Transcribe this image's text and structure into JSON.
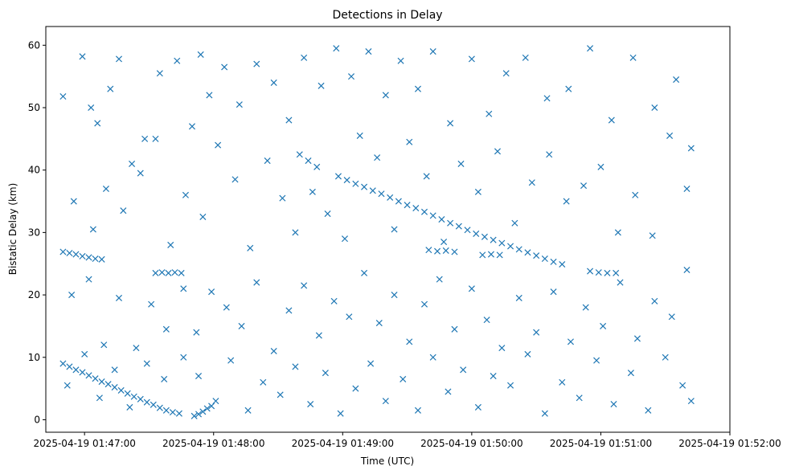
{
  "chart_data": {
    "type": "scatter",
    "title": "Detections in Delay",
    "xlabel": "Time (UTC)",
    "ylabel": "Bistatic Delay (km)",
    "xlim": [
      "2025-04-19 01:46:42",
      "2025-04-19 01:52:00"
    ],
    "ylim": [
      -2,
      63
    ],
    "x_ticks": [
      "2025-04-19 01:47:00",
      "2025-04-19 01:48:00",
      "2025-04-19 01:49:00",
      "2025-04-19 01:50:00",
      "2025-04-19 01:51:00",
      "2025-04-19 01:52:00"
    ],
    "y_ticks": [
      "0",
      "10",
      "20",
      "30",
      "40",
      "50",
      "60"
    ],
    "marker": "x",
    "color": "#1f77b4",
    "grid": false,
    "series": [
      {
        "points": [
          [
            "2025-04-19 01:46:50",
            9.0
          ],
          [
            "2025-04-19 01:46:53",
            8.5
          ],
          [
            "2025-04-19 01:46:56",
            8.0
          ],
          [
            "2025-04-19 01:46:59",
            7.6
          ],
          [
            "2025-04-19 01:47:02",
            7.1
          ],
          [
            "2025-04-19 01:47:05",
            6.6
          ],
          [
            "2025-04-19 01:47:08",
            6.1
          ],
          [
            "2025-04-19 01:47:11",
            5.7
          ],
          [
            "2025-04-19 01:47:14",
            5.2
          ],
          [
            "2025-04-19 01:47:17",
            4.7
          ],
          [
            "2025-04-19 01:47:20",
            4.2
          ],
          [
            "2025-04-19 01:47:23",
            3.7
          ],
          [
            "2025-04-19 01:47:26",
            3.3
          ],
          [
            "2025-04-19 01:47:29",
            2.8
          ],
          [
            "2025-04-19 01:47:32",
            2.4
          ],
          [
            "2025-04-19 01:47:35",
            1.9
          ],
          [
            "2025-04-19 01:47:38",
            1.5
          ],
          [
            "2025-04-19 01:47:41",
            1.2
          ],
          [
            "2025-04-19 01:47:44",
            1.0
          ],
          [
            "2025-04-19 01:46:50",
            26.9
          ],
          [
            "2025-04-19 01:46:53",
            26.7
          ],
          [
            "2025-04-19 01:46:56",
            26.5
          ],
          [
            "2025-04-19 01:46:59",
            26.2
          ],
          [
            "2025-04-19 01:47:02",
            26.0
          ],
          [
            "2025-04-19 01:47:05",
            25.8
          ],
          [
            "2025-04-19 01:47:08",
            25.7
          ],
          [
            "2025-04-19 01:47:33",
            23.5
          ],
          [
            "2025-04-19 01:47:36",
            23.6
          ],
          [
            "2025-04-19 01:47:39",
            23.5
          ],
          [
            "2025-04-19 01:47:42",
            23.6
          ],
          [
            "2025-04-19 01:47:45",
            23.5
          ],
          [
            "2025-04-19 01:47:51",
            0.6
          ],
          [
            "2025-04-19 01:47:53",
            0.9
          ],
          [
            "2025-04-19 01:47:55",
            1.3
          ],
          [
            "2025-04-19 01:47:57",
            1.8
          ],
          [
            "2025-04-19 01:47:59",
            2.2
          ],
          [
            "2025-04-19 01:48:40",
            42.5
          ],
          [
            "2025-04-19 01:48:44",
            41.5
          ],
          [
            "2025-04-19 01:48:48",
            40.5
          ],
          [
            "2025-04-19 01:48:58",
            39.0
          ],
          [
            "2025-04-19 01:49:02",
            38.4
          ],
          [
            "2025-04-19 01:49:06",
            37.8
          ],
          [
            "2025-04-19 01:49:10",
            37.3
          ],
          [
            "2025-04-19 01:49:14",
            36.7
          ],
          [
            "2025-04-19 01:49:18",
            36.2
          ],
          [
            "2025-04-19 01:49:22",
            35.6
          ],
          [
            "2025-04-19 01:49:26",
            35.0
          ],
          [
            "2025-04-19 01:49:30",
            34.4
          ],
          [
            "2025-04-19 01:49:34",
            33.9
          ],
          [
            "2025-04-19 01:49:38",
            33.3
          ],
          [
            "2025-04-19 01:49:42",
            32.7
          ],
          [
            "2025-04-19 01:49:46",
            32.1
          ],
          [
            "2025-04-19 01:49:50",
            31.5
          ],
          [
            "2025-04-19 01:49:54",
            31.0
          ],
          [
            "2025-04-19 01:49:58",
            30.4
          ],
          [
            "2025-04-19 01:50:02",
            29.8
          ],
          [
            "2025-04-19 01:50:06",
            29.3
          ],
          [
            "2025-04-19 01:50:10",
            28.8
          ],
          [
            "2025-04-19 01:50:14",
            28.3
          ],
          [
            "2025-04-19 01:50:18",
            27.8
          ],
          [
            "2025-04-19 01:50:22",
            27.3
          ],
          [
            "2025-04-19 01:50:26",
            26.8
          ],
          [
            "2025-04-19 01:50:30",
            26.3
          ],
          [
            "2025-04-19 01:50:34",
            25.8
          ],
          [
            "2025-04-19 01:50:38",
            25.3
          ],
          [
            "2025-04-19 01:50:42",
            24.9
          ],
          [
            "2025-04-19 01:49:40",
            27.2
          ],
          [
            "2025-04-19 01:49:44",
            27.0
          ],
          [
            "2025-04-19 01:49:48",
            27.1
          ],
          [
            "2025-04-19 01:49:52",
            26.9
          ],
          [
            "2025-04-19 01:50:05",
            26.4
          ],
          [
            "2025-04-19 01:50:09",
            26.5
          ],
          [
            "2025-04-19 01:50:13",
            26.4
          ],
          [
            "2025-04-19 01:50:55",
            23.8
          ],
          [
            "2025-04-19 01:50:59",
            23.6
          ],
          [
            "2025-04-19 01:51:03",
            23.5
          ],
          [
            "2025-04-19 01:51:07",
            23.5
          ],
          [
            "2025-04-19 01:46:50",
            51.8
          ],
          [
            "2025-04-19 01:46:59",
            58.2
          ],
          [
            "2025-04-19 01:47:03",
            50.0
          ],
          [
            "2025-04-19 01:47:06",
            47.5
          ],
          [
            "2025-04-19 01:47:12",
            53.0
          ],
          [
            "2025-04-19 01:47:16",
            57.8
          ],
          [
            "2025-04-19 01:47:22",
            41.0
          ],
          [
            "2025-04-19 01:47:28",
            45.0
          ],
          [
            "2025-04-19 01:47:35",
            55.5
          ],
          [
            "2025-04-19 01:47:43",
            57.5
          ],
          [
            "2025-04-19 01:47:50",
            47.0
          ],
          [
            "2025-04-19 01:47:54",
            58.5
          ],
          [
            "2025-04-19 01:47:58",
            52.0
          ],
          [
            "2025-04-19 01:48:05",
            56.5
          ],
          [
            "2025-04-19 01:48:12",
            50.5
          ],
          [
            "2025-04-19 01:48:20",
            57.0
          ],
          [
            "2025-04-19 01:48:28",
            54.0
          ],
          [
            "2025-04-19 01:48:35",
            48.0
          ],
          [
            "2025-04-19 01:48:42",
            58.0
          ],
          [
            "2025-04-19 01:48:50",
            53.5
          ],
          [
            "2025-04-19 01:48:57",
            59.5
          ],
          [
            "2025-04-19 01:49:04",
            55.0
          ],
          [
            "2025-04-19 01:49:12",
            59.0
          ],
          [
            "2025-04-19 01:49:20",
            52.0
          ],
          [
            "2025-04-19 01:49:27",
            57.5
          ],
          [
            "2025-04-19 01:49:35",
            53.0
          ],
          [
            "2025-04-19 01:49:42",
            59.0
          ],
          [
            "2025-04-19 01:49:50",
            47.5
          ],
          [
            "2025-04-19 01:50:00",
            57.8
          ],
          [
            "2025-04-19 01:50:08",
            49.0
          ],
          [
            "2025-04-19 01:50:16",
            55.5
          ],
          [
            "2025-04-19 01:50:25",
            58.0
          ],
          [
            "2025-04-19 01:50:35",
            51.5
          ],
          [
            "2025-04-19 01:50:45",
            53.0
          ],
          [
            "2025-04-19 01:50:55",
            59.5
          ],
          [
            "2025-04-19 01:51:05",
            48.0
          ],
          [
            "2025-04-19 01:51:15",
            58.0
          ],
          [
            "2025-04-19 01:51:25",
            50.0
          ],
          [
            "2025-04-19 01:51:35",
            54.5
          ],
          [
            "2025-04-19 01:51:42",
            43.5
          ],
          [
            "2025-04-19 01:46:55",
            35.0
          ],
          [
            "2025-04-19 01:47:04",
            30.5
          ],
          [
            "2025-04-19 01:47:10",
            37.0
          ],
          [
            "2025-04-19 01:47:18",
            33.5
          ],
          [
            "2025-04-19 01:47:26",
            39.5
          ],
          [
            "2025-04-19 01:47:33",
            45.0
          ],
          [
            "2025-04-19 01:47:40",
            28.0
          ],
          [
            "2025-04-19 01:47:47",
            36.0
          ],
          [
            "2025-04-19 01:47:55",
            32.5
          ],
          [
            "2025-04-19 01:48:02",
            44.0
          ],
          [
            "2025-04-19 01:48:10",
            38.5
          ],
          [
            "2025-04-19 01:48:17",
            27.5
          ],
          [
            "2025-04-19 01:48:25",
            41.5
          ],
          [
            "2025-04-19 01:48:32",
            35.5
          ],
          [
            "2025-04-19 01:48:38",
            30.0
          ],
          [
            "2025-04-19 01:48:46",
            36.5
          ],
          [
            "2025-04-19 01:48:53",
            33.0
          ],
          [
            "2025-04-19 01:49:01",
            29.0
          ],
          [
            "2025-04-19 01:49:08",
            45.5
          ],
          [
            "2025-04-19 01:49:16",
            42.0
          ],
          [
            "2025-04-19 01:49:24",
            30.5
          ],
          [
            "2025-04-19 01:49:31",
            44.5
          ],
          [
            "2025-04-19 01:49:39",
            39.0
          ],
          [
            "2025-04-19 01:49:47",
            28.5
          ],
          [
            "2025-04-19 01:49:55",
            41.0
          ],
          [
            "2025-04-19 01:50:03",
            36.5
          ],
          [
            "2025-04-19 01:50:12",
            43.0
          ],
          [
            "2025-04-19 01:50:20",
            31.5
          ],
          [
            "2025-04-19 01:50:28",
            38.0
          ],
          [
            "2025-04-19 01:50:36",
            42.5
          ],
          [
            "2025-04-19 01:50:44",
            35.0
          ],
          [
            "2025-04-19 01:50:52",
            37.5
          ],
          [
            "2025-04-19 01:51:00",
            40.5
          ],
          [
            "2025-04-19 01:51:08",
            30.0
          ],
          [
            "2025-04-19 01:51:16",
            36.0
          ],
          [
            "2025-04-19 01:51:24",
            29.5
          ],
          [
            "2025-04-19 01:51:32",
            45.5
          ],
          [
            "2025-04-19 01:51:40",
            37.0
          ],
          [
            "2025-04-19 01:46:54",
            20.0
          ],
          [
            "2025-04-19 01:47:02",
            22.5
          ],
          [
            "2025-04-19 01:47:09",
            12.0
          ],
          [
            "2025-04-19 01:47:16",
            19.5
          ],
          [
            "2025-04-19 01:47:24",
            11.5
          ],
          [
            "2025-04-19 01:47:31",
            18.5
          ],
          [
            "2025-04-19 01:47:38",
            14.5
          ],
          [
            "2025-04-19 01:47:46",
            21.0
          ],
          [
            "2025-04-19 01:47:52",
            14.0
          ],
          [
            "2025-04-19 01:47:59",
            20.5
          ],
          [
            "2025-04-19 01:48:06",
            18.0
          ],
          [
            "2025-04-19 01:48:13",
            15.0
          ],
          [
            "2025-04-19 01:48:20",
            22.0
          ],
          [
            "2025-04-19 01:48:28",
            11.0
          ],
          [
            "2025-04-19 01:48:35",
            17.5
          ],
          [
            "2025-04-19 01:48:42",
            21.5
          ],
          [
            "2025-04-19 01:48:49",
            13.5
          ],
          [
            "2025-04-19 01:48:56",
            19.0
          ],
          [
            "2025-04-19 01:49:03",
            16.5
          ],
          [
            "2025-04-19 01:49:10",
            23.5
          ],
          [
            "2025-04-19 01:49:17",
            15.5
          ],
          [
            "2025-04-19 01:49:24",
            20.0
          ],
          [
            "2025-04-19 01:49:31",
            12.5
          ],
          [
            "2025-04-19 01:49:38",
            18.5
          ],
          [
            "2025-04-19 01:49:45",
            22.5
          ],
          [
            "2025-04-19 01:49:52",
            14.5
          ],
          [
            "2025-04-19 01:50:00",
            21.0
          ],
          [
            "2025-04-19 01:50:07",
            16.0
          ],
          [
            "2025-04-19 01:50:14",
            11.5
          ],
          [
            "2025-04-19 01:50:22",
            19.5
          ],
          [
            "2025-04-19 01:50:30",
            14.0
          ],
          [
            "2025-04-19 01:50:38",
            20.5
          ],
          [
            "2025-04-19 01:50:46",
            12.5
          ],
          [
            "2025-04-19 01:50:53",
            18.0
          ],
          [
            "2025-04-19 01:51:01",
            15.0
          ],
          [
            "2025-04-19 01:51:09",
            22.0
          ],
          [
            "2025-04-19 01:51:17",
            13.0
          ],
          [
            "2025-04-19 01:51:25",
            19.0
          ],
          [
            "2025-04-19 01:51:33",
            16.5
          ],
          [
            "2025-04-19 01:51:40",
            24.0
          ],
          [
            "2025-04-19 01:46:52",
            5.5
          ],
          [
            "2025-04-19 01:47:00",
            10.5
          ],
          [
            "2025-04-19 01:47:07",
            3.5
          ],
          [
            "2025-04-19 01:47:14",
            8.0
          ],
          [
            "2025-04-19 01:47:21",
            2.0
          ],
          [
            "2025-04-19 01:47:29",
            9.0
          ],
          [
            "2025-04-19 01:47:37",
            6.5
          ],
          [
            "2025-04-19 01:47:46",
            10.0
          ],
          [
            "2025-04-19 01:47:53",
            7.0
          ],
          [
            "2025-04-19 01:48:01",
            3.0
          ],
          [
            "2025-04-19 01:48:08",
            9.5
          ],
          [
            "2025-04-19 01:48:16",
            1.5
          ],
          [
            "2025-04-19 01:48:23",
            6.0
          ],
          [
            "2025-04-19 01:48:31",
            4.0
          ],
          [
            "2025-04-19 01:48:38",
            8.5
          ],
          [
            "2025-04-19 01:48:45",
            2.5
          ],
          [
            "2025-04-19 01:48:52",
            7.5
          ],
          [
            "2025-04-19 01:48:59",
            1.0
          ],
          [
            "2025-04-19 01:49:06",
            5.0
          ],
          [
            "2025-04-19 01:49:13",
            9.0
          ],
          [
            "2025-04-19 01:49:20",
            3.0
          ],
          [
            "2025-04-19 01:49:28",
            6.5
          ],
          [
            "2025-04-19 01:49:35",
            1.5
          ],
          [
            "2025-04-19 01:49:42",
            10.0
          ],
          [
            "2025-04-19 01:49:49",
            4.5
          ],
          [
            "2025-04-19 01:49:56",
            8.0
          ],
          [
            "2025-04-19 01:50:03",
            2.0
          ],
          [
            "2025-04-19 01:50:10",
            7.0
          ],
          [
            "2025-04-19 01:50:18",
            5.5
          ],
          [
            "2025-04-19 01:50:26",
            10.5
          ],
          [
            "2025-04-19 01:50:34",
            1.0
          ],
          [
            "2025-04-19 01:50:42",
            6.0
          ],
          [
            "2025-04-19 01:50:50",
            3.5
          ],
          [
            "2025-04-19 01:50:58",
            9.5
          ],
          [
            "2025-04-19 01:51:06",
            2.5
          ],
          [
            "2025-04-19 01:51:14",
            7.5
          ],
          [
            "2025-04-19 01:51:22",
            1.5
          ],
          [
            "2025-04-19 01:51:30",
            10.0
          ],
          [
            "2025-04-19 01:51:38",
            5.5
          ],
          [
            "2025-04-19 01:51:42",
            3.0
          ]
        ]
      }
    ]
  }
}
